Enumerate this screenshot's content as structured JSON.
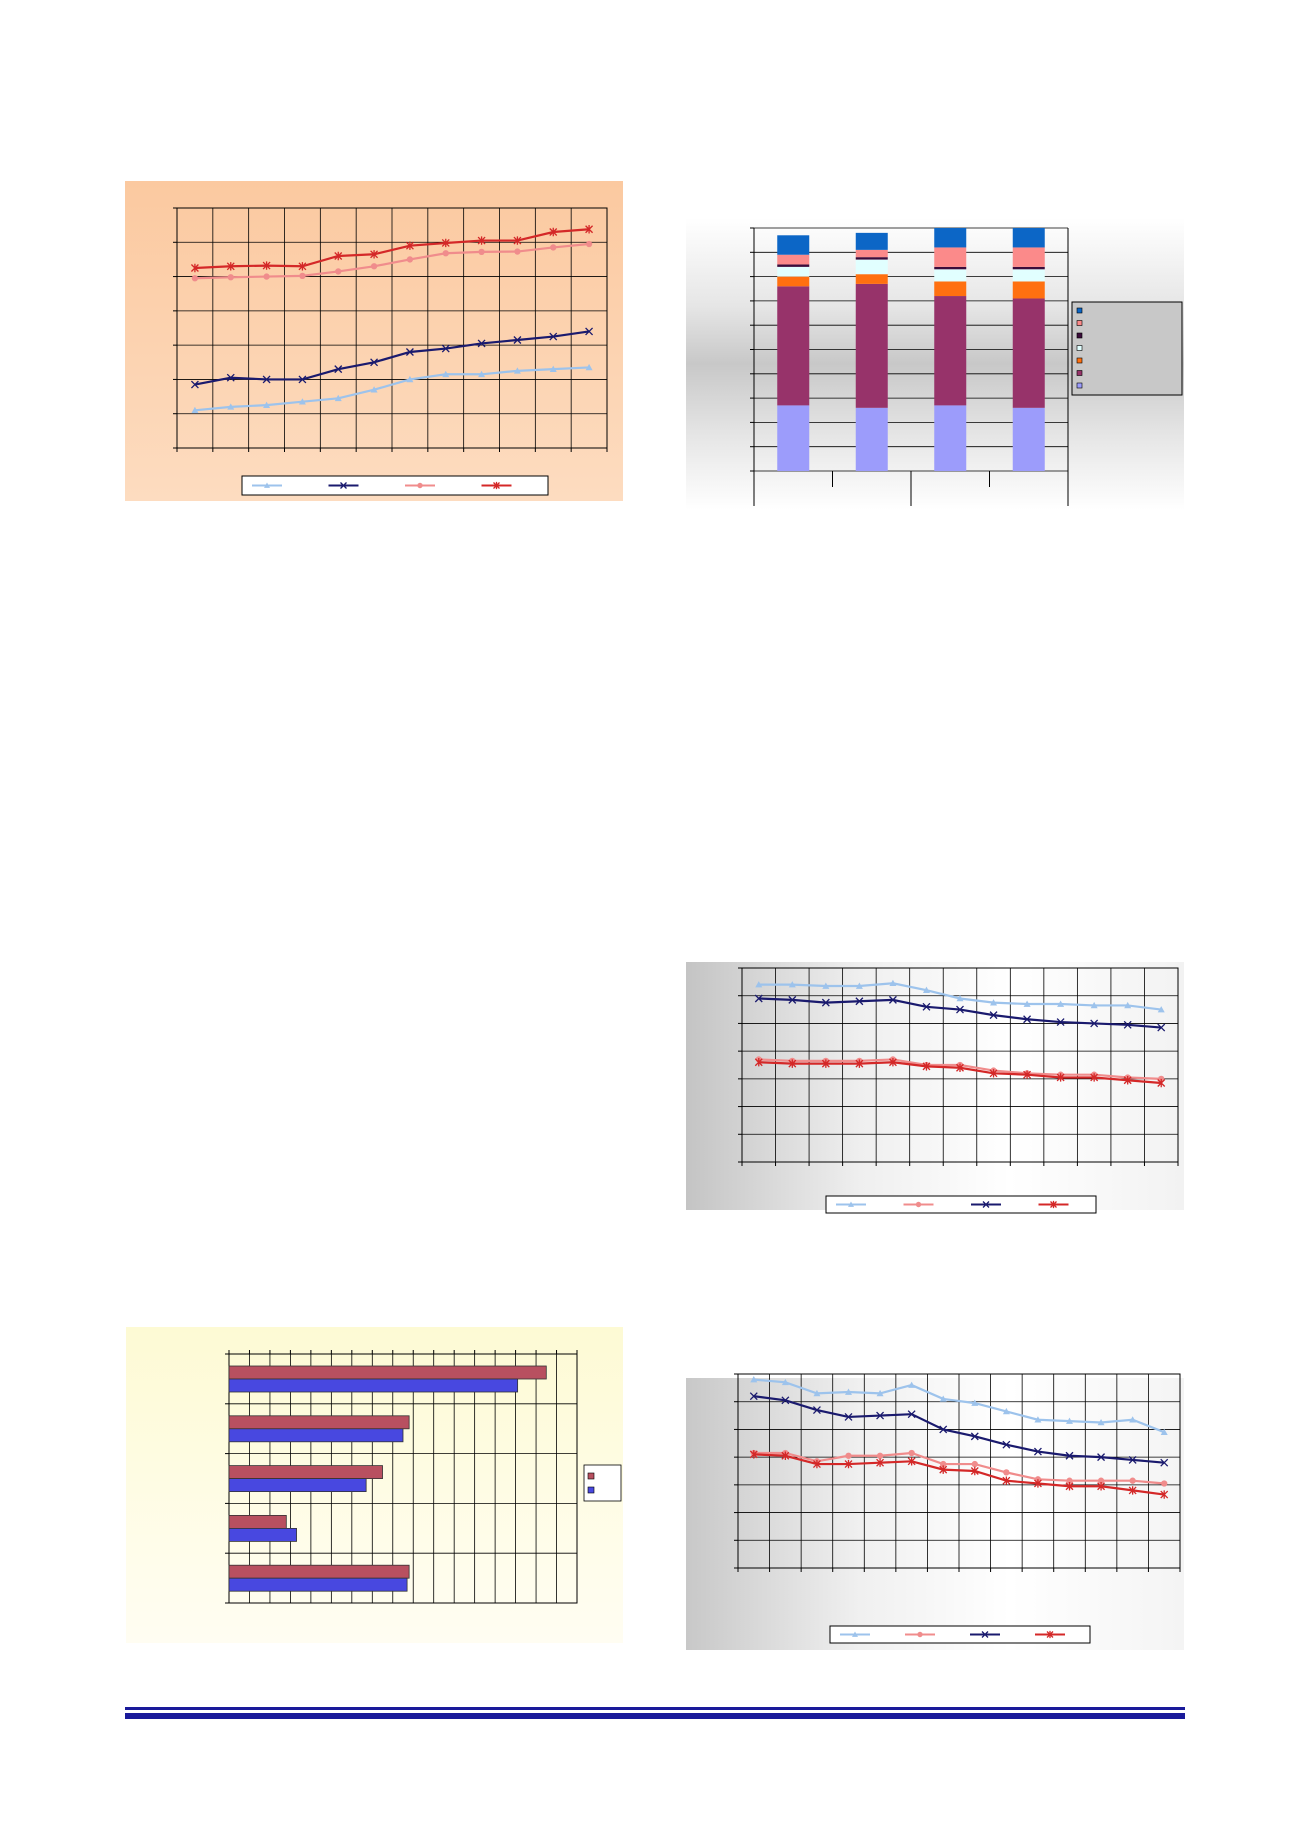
{
  "chart_data": [
    {
      "type": "line",
      "x": [
        1,
        2,
        3,
        4,
        5,
        6,
        7,
        8,
        9,
        10,
        11,
        12
      ],
      "ylim": [
        0,
        7
      ],
      "grid": true,
      "legend": "bottom",
      "series": [
        {
          "marker": "triangle",
          "color": "#9dc3ec",
          "values": [
            1.1,
            1.2,
            1.25,
            1.35,
            1.45,
            1.7,
            2.0,
            2.15,
            2.15,
            2.25,
            2.3,
            2.35
          ]
        },
        {
          "marker": "x",
          "color": "#1a1a6e",
          "values": [
            1.85,
            2.05,
            2.0,
            2.0,
            2.3,
            2.5,
            2.8,
            2.9,
            3.05,
            3.15,
            3.25,
            3.4
          ]
        },
        {
          "marker": "circle",
          "color": "#f08c8c",
          "values": [
            4.95,
            4.98,
            5.0,
            5.02,
            5.15,
            5.3,
            5.5,
            5.68,
            5.72,
            5.73,
            5.85,
            5.95
          ]
        },
        {
          "marker": "star",
          "color": "#d42828",
          "values": [
            5.25,
            5.3,
            5.32,
            5.3,
            5.6,
            5.65,
            5.9,
            5.98,
            6.05,
            6.05,
            6.3,
            6.38
          ]
        }
      ]
    },
    {
      "type": "bar",
      "stacked": true,
      "categories": [
        "",
        "",
        "",
        ""
      ],
      "ylim": [
        0,
        100
      ],
      "grid": true,
      "legend": "right",
      "series": [
        {
          "color": "#9c9cfb",
          "values": [
            27,
            26,
            27,
            26
          ]
        },
        {
          "color": "#97336a",
          "values": [
            49,
            51,
            45,
            45
          ]
        },
        {
          "color": "#ff7010",
          "values": [
            4,
            4,
            6,
            7
          ]
        },
        {
          "color": "#e1ffff",
          "values": [
            4,
            6,
            5,
            5
          ]
        },
        {
          "color": "#3b0c3b",
          "values": [
            1,
            1,
            1,
            1
          ]
        },
        {
          "color": "#fb8a8a",
          "values": [
            4,
            3,
            8,
            8
          ]
        },
        {
          "color": "#0c66c6",
          "values": [
            8,
            7,
            8,
            8
          ]
        }
      ]
    },
    {
      "type": "line",
      "x": [
        1,
        2,
        3,
        4,
        5,
        6,
        7,
        8,
        9,
        10,
        11,
        12,
        13
      ],
      "ylim": [
        0,
        7
      ],
      "grid": true,
      "legend": "bottom",
      "series": [
        {
          "marker": "triangle",
          "color": "#9dc3ec",
          "values": [
            6.4,
            6.4,
            6.35,
            6.35,
            6.45,
            6.2,
            5.9,
            5.75,
            5.7,
            5.7,
            5.65,
            5.65,
            5.5
          ]
        },
        {
          "marker": "circle",
          "color": "#f08c8c",
          "values": [
            3.7,
            3.65,
            3.65,
            3.65,
            3.7,
            3.5,
            3.5,
            3.3,
            3.2,
            3.15,
            3.15,
            3.05,
            3.0
          ]
        },
        {
          "marker": "x",
          "color": "#1a1a6e",
          "values": [
            5.9,
            5.85,
            5.75,
            5.8,
            5.85,
            5.6,
            5.5,
            5.3,
            5.15,
            5.05,
            5.0,
            4.95,
            4.85
          ]
        },
        {
          "marker": "star",
          "color": "#d42828",
          "values": [
            3.6,
            3.55,
            3.55,
            3.55,
            3.6,
            3.45,
            3.4,
            3.2,
            3.15,
            3.05,
            3.05,
            2.95,
            2.85
          ]
        }
      ]
    },
    {
      "type": "bar",
      "orientation": "horizontal",
      "categories": [
        "",
        "",
        "",
        "",
        ""
      ],
      "xlim": [
        0,
        17
      ],
      "grid": true,
      "legend": "right",
      "series": [
        {
          "color": "#b85060",
          "values": [
            15.5,
            8.8,
            7.5,
            2.8,
            8.8
          ]
        },
        {
          "color": "#4848e0",
          "values": [
            14.1,
            8.5,
            6.7,
            3.3,
            8.7
          ]
        }
      ]
    },
    {
      "type": "line",
      "x": [
        1,
        2,
        3,
        4,
        5,
        6,
        7,
        8,
        9,
        10,
        11,
        12,
        13,
        14
      ],
      "ylim": [
        0,
        7
      ],
      "grid": true,
      "legend": "bottom",
      "series": [
        {
          "marker": "triangle",
          "color": "#9dc3ec",
          "values": [
            6.8,
            6.7,
            6.3,
            6.35,
            6.3,
            6.6,
            6.1,
            5.95,
            5.65,
            5.35,
            5.3,
            5.25,
            5.35,
            4.9
          ]
        },
        {
          "marker": "circle",
          "color": "#f08c8c",
          "values": [
            4.15,
            4.15,
            3.85,
            4.05,
            4.05,
            4.15,
            3.75,
            3.75,
            3.45,
            3.2,
            3.15,
            3.15,
            3.15,
            3.05
          ]
        },
        {
          "marker": "x",
          "color": "#1a1a6e",
          "values": [
            6.2,
            6.05,
            5.7,
            5.45,
            5.5,
            5.55,
            5.0,
            4.75,
            4.45,
            4.2,
            4.05,
            4.0,
            3.9,
            3.8
          ]
        },
        {
          "marker": "star",
          "color": "#d42828",
          "values": [
            4.1,
            4.05,
            3.75,
            3.75,
            3.8,
            3.85,
            3.55,
            3.5,
            3.15,
            3.05,
            2.95,
            2.95,
            2.8,
            2.65
          ]
        }
      ]
    }
  ]
}
